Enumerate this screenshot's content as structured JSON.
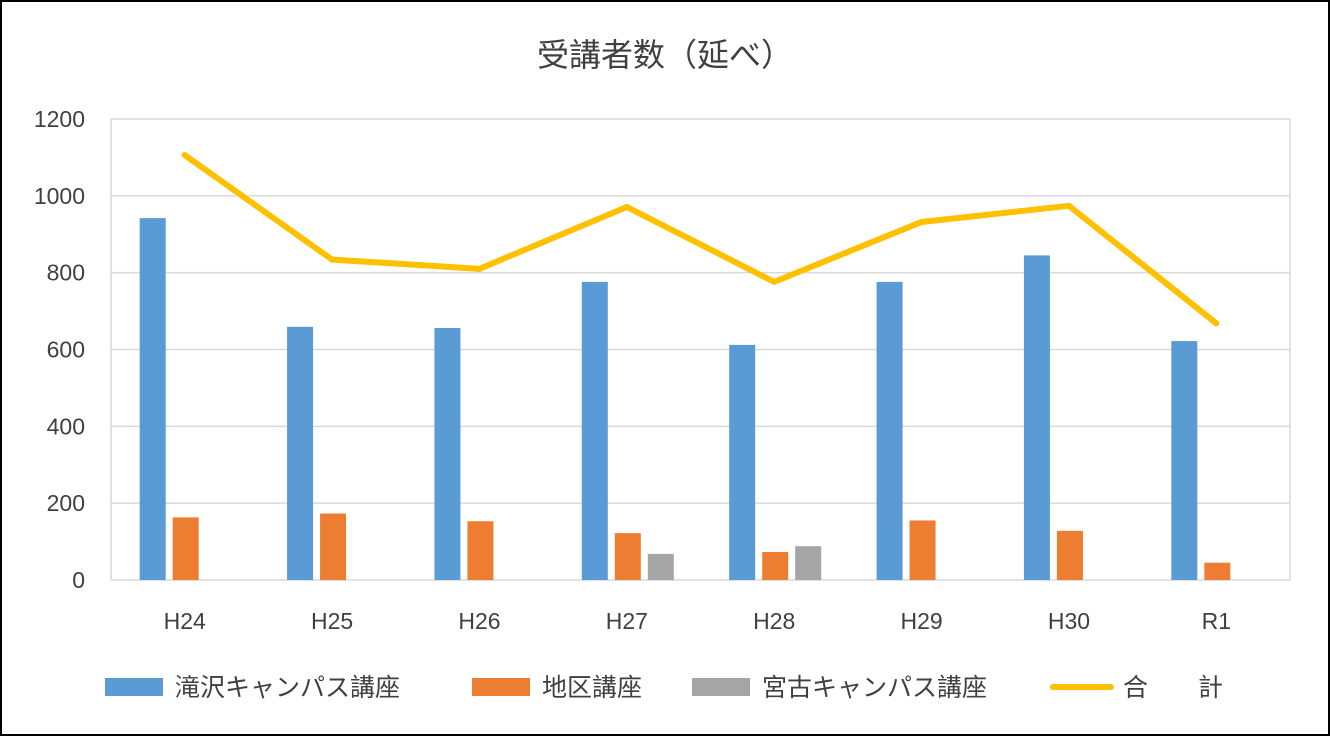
{
  "chart_data": {
    "type": "bar",
    "title": "受講者数（延べ）",
    "categories": [
      "H24",
      "H25",
      "H26",
      "H27",
      "H28",
      "H29",
      "H30",
      "R1"
    ],
    "series": [
      {
        "name": "滝沢キャンパス講座",
        "type": "bar",
        "color": "#5B9BD5",
        "values": [
          942,
          659,
          656,
          776,
          612,
          776,
          845,
          622
        ]
      },
      {
        "name": "地区講座",
        "type": "bar",
        "color": "#ED7D31",
        "values": [
          163,
          173,
          153,
          122,
          73,
          155,
          128,
          45
        ]
      },
      {
        "name": "宮古キャンパス講座",
        "type": "bar",
        "color": "#A5A5A5",
        "values": [
          0,
          0,
          0,
          68,
          88,
          0,
          0,
          0
        ]
      },
      {
        "name": "合　　計",
        "type": "line",
        "color": "#FFC000",
        "values": [
          1106,
          834,
          810,
          971,
          776,
          932,
          974,
          668
        ]
      }
    ],
    "yticks": [
      "0",
      "200",
      "400",
      "600",
      "800",
      "1000",
      "1200"
    ],
    "ylim": [
      0,
      1200
    ],
    "grid": true,
    "legend": "bottom",
    "xlabel": "",
    "ylabel": ""
  }
}
